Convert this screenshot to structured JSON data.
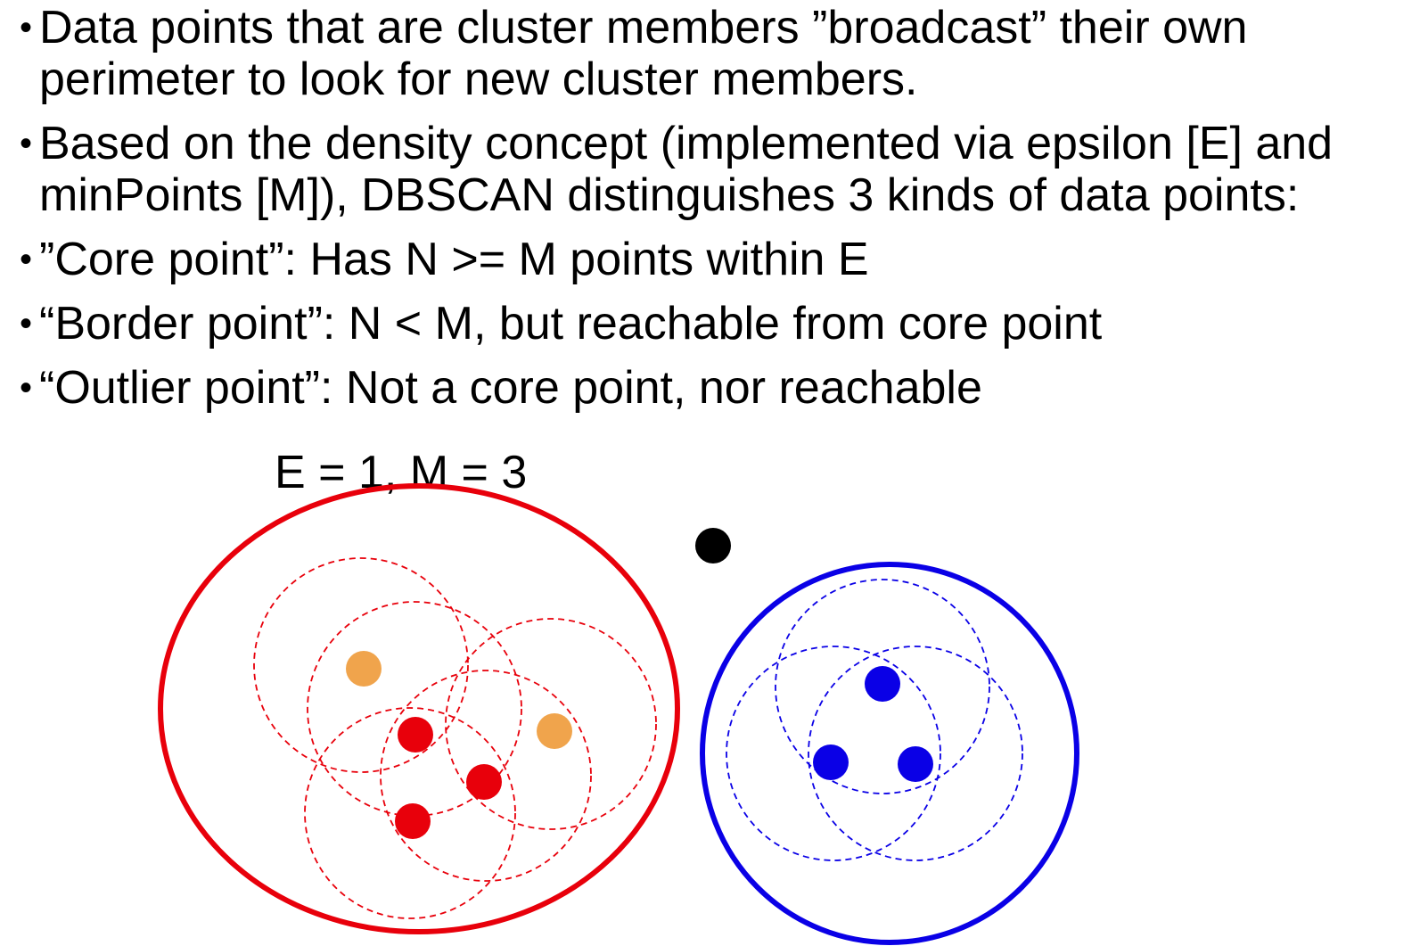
{
  "bullets": [
    {
      "lines": [
        "Data points that are cluster members ”broadcast” their own",
        "perimeter to look for new cluster members."
      ]
    },
    {
      "lines": [
        "Based on the density concept (implemented via epsilon [E] and",
        "minPoints [M]), DBSCAN distinguishes 3 kinds of data points:"
      ]
    },
    {
      "lines": [
        "”Core point”: Has N >= M points within E"
      ]
    },
    {
      "lines": [
        "“Border point”: N < M, but reachable from core point"
      ]
    },
    {
      "lines": [
        "“Outlier point”: Not a core point, nor reachable"
      ]
    }
  ],
  "bullet_glyph": "•",
  "diagram": {
    "label": "E = 1, M = 3",
    "colors": {
      "red_cluster": "#e8000b",
      "border_point": "#f0a44c",
      "blue_cluster": "#0a00e6",
      "outlier": "#000000"
    },
    "point_types_shown": [
      "core",
      "border",
      "outlier"
    ]
  }
}
